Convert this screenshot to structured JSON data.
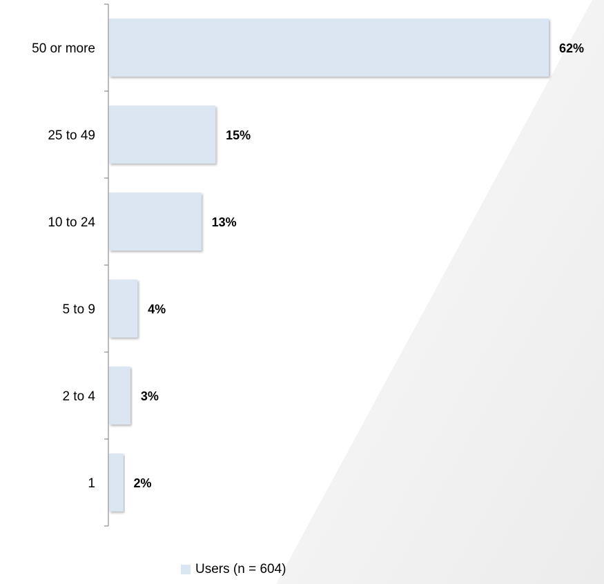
{
  "chart_data": {
    "type": "bar",
    "orientation": "horizontal",
    "categories": [
      "50 or more",
      "25 to 49",
      "10 to 24",
      "5 to 9",
      "2 to 4",
      "1"
    ],
    "series": [
      {
        "name": "Users (n = 604)",
        "values": [
          62,
          15,
          13,
          4,
          3,
          2
        ],
        "data_labels": [
          "62%",
          "15%",
          "13%",
          "4%",
          "3%",
          "2%"
        ],
        "color": "#dce6f2"
      }
    ],
    "title": "",
    "xlabel": "",
    "ylabel": "",
    "xlim": [
      0,
      62
    ],
    "grid": false,
    "legend_position": "bottom"
  },
  "colors": {
    "bar_fill": "#dce6f2",
    "axis": "#8c8c8c",
    "background_wedge": "#f3f3f3"
  }
}
